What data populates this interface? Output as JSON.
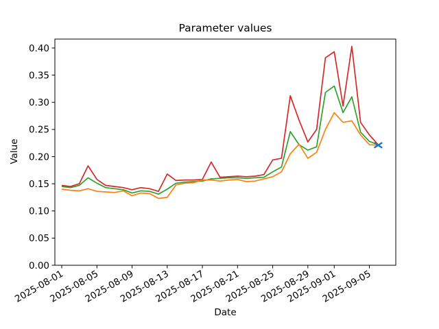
{
  "chart_data": {
    "type": "line",
    "title": "Parameter values",
    "xlabel": "Date",
    "ylabel": "Value",
    "ylim": [
      0.0,
      0.4165
    ],
    "grid": false,
    "legend": "none",
    "yticks": [
      0.0,
      0.05,
      0.1,
      0.15,
      0.2,
      0.25,
      0.3,
      0.35,
      0.4
    ],
    "ytick_labels": [
      "0.00",
      "0.05",
      "0.10",
      "0.15",
      "0.20",
      "0.25",
      "0.30",
      "0.35",
      "0.40"
    ],
    "xticks": [
      "2025-08-01",
      "2025-08-05",
      "2025-08-09",
      "2025-08-13",
      "2025-08-17",
      "2025-08-21",
      "2025-08-25",
      "2025-08-29",
      "2025-09-01",
      "2025-09-05"
    ],
    "dates": [
      "2025-08-01",
      "2025-08-02",
      "2025-08-03",
      "2025-08-04",
      "2025-08-05",
      "2025-08-06",
      "2025-08-07",
      "2025-08-08",
      "2025-08-09",
      "2025-08-10",
      "2025-08-11",
      "2025-08-12",
      "2025-08-13",
      "2025-08-14",
      "2025-08-15",
      "2025-08-16",
      "2025-08-17",
      "2025-08-18",
      "2025-08-19",
      "2025-08-20",
      "2025-08-21",
      "2025-08-22",
      "2025-08-23",
      "2025-08-24",
      "2025-08-25",
      "2025-08-26",
      "2025-08-27",
      "2025-08-28",
      "2025-08-29",
      "2025-08-30",
      "2025-08-31",
      "2025-09-01",
      "2025-09-02",
      "2025-09-03",
      "2025-09-04",
      "2025-09-05",
      "2025-09-06"
    ],
    "series": [
      {
        "name": "red",
        "color": "#d62728",
        "values": [
          0.147,
          0.145,
          0.15,
          0.183,
          0.158,
          0.147,
          0.145,
          0.143,
          0.139,
          0.143,
          0.141,
          0.136,
          0.168,
          0.156,
          0.157,
          0.157,
          0.158,
          0.19,
          0.162,
          0.163,
          0.164,
          0.163,
          0.164,
          0.167,
          0.194,
          0.197,
          0.312,
          0.267,
          0.227,
          0.25,
          0.382,
          0.393,
          0.293,
          0.403,
          0.263,
          0.24,
          0.222
        ]
      },
      {
        "name": "green",
        "color": "#2ca02c",
        "values": [
          0.145,
          0.143,
          0.147,
          0.161,
          0.151,
          0.143,
          0.141,
          0.139,
          0.133,
          0.137,
          0.136,
          0.131,
          0.14,
          0.151,
          0.153,
          0.154,
          0.155,
          0.159,
          0.16,
          0.161,
          0.161,
          0.16,
          0.161,
          0.162,
          0.172,
          0.181,
          0.246,
          0.222,
          0.212,
          0.218,
          0.318,
          0.33,
          0.281,
          0.31,
          0.245,
          0.228,
          0.222
        ]
      },
      {
        "name": "orange",
        "color": "#ff7f0e",
        "values": [
          0.14,
          0.138,
          0.137,
          0.141,
          0.136,
          0.135,
          0.134,
          0.137,
          0.128,
          0.133,
          0.132,
          0.123,
          0.125,
          0.148,
          0.151,
          0.152,
          0.157,
          0.157,
          0.155,
          0.157,
          0.158,
          0.154,
          0.155,
          0.159,
          0.163,
          0.172,
          0.205,
          0.223,
          0.197,
          0.208,
          0.25,
          0.281,
          0.263,
          0.266,
          0.24,
          0.222,
          0.221
        ]
      }
    ],
    "marker_series": {
      "name": "blue-end-marker",
      "color": "#1f77b4",
      "marker": "x",
      "dates": [
        "2025-09-06"
      ],
      "values": [
        0.221
      ]
    }
  }
}
